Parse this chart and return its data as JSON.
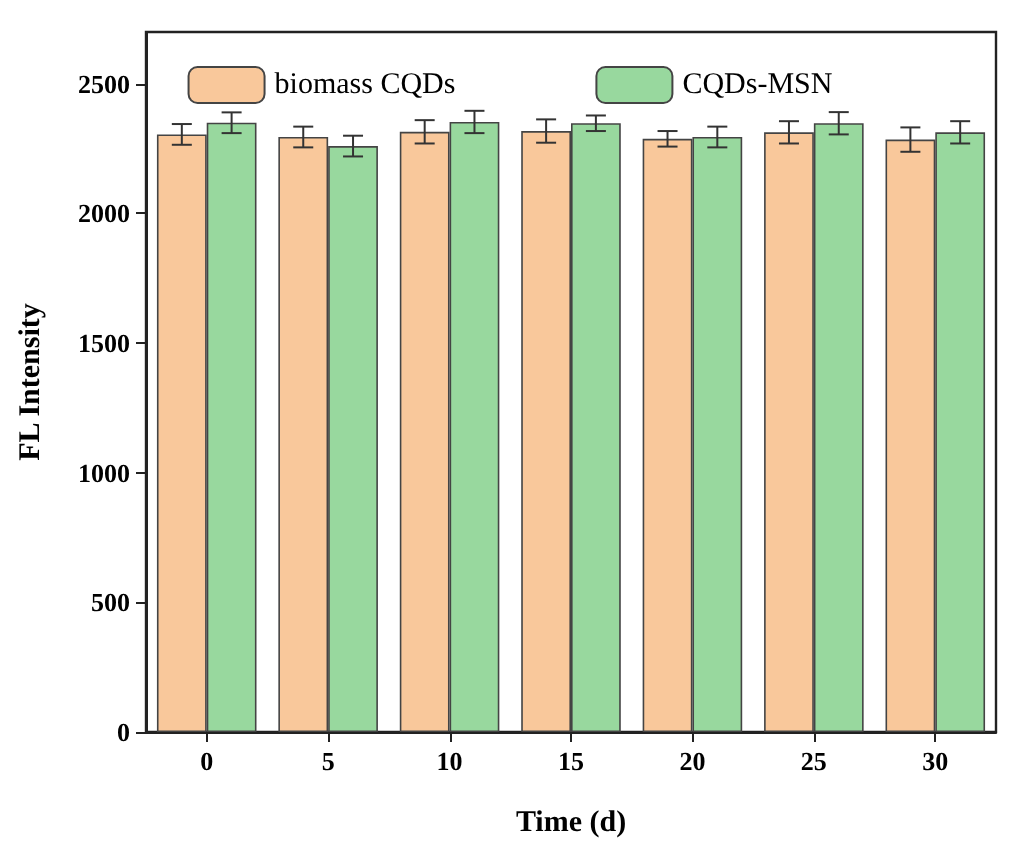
{
  "chart_data": {
    "type": "bar",
    "xlabel": "Time (d)",
    "ylabel": "FL Intensity",
    "categories": [
      "0",
      "5",
      "10",
      "15",
      "20",
      "25",
      "30"
    ],
    "series": [
      {
        "name": "biomass CQDs",
        "color": "#f9c89b",
        "values": [
          2305,
          2295,
          2315,
          2318,
          2288,
          2313,
          2285
        ],
        "errors": [
          40,
          40,
          45,
          45,
          30,
          43,
          47
        ]
      },
      {
        "name": "CQDs-MSN",
        "color": "#98d89e",
        "values": [
          2350,
          2260,
          2353,
          2348,
          2295,
          2348,
          2313
        ],
        "errors": [
          40,
          40,
          43,
          30,
          40,
          43,
          43
        ]
      }
    ],
    "ylim": [
      0,
      2700
    ],
    "yticks": [
      0,
      500,
      1000,
      1500,
      2000,
      2500
    ],
    "grid": false,
    "legend": "top"
  }
}
